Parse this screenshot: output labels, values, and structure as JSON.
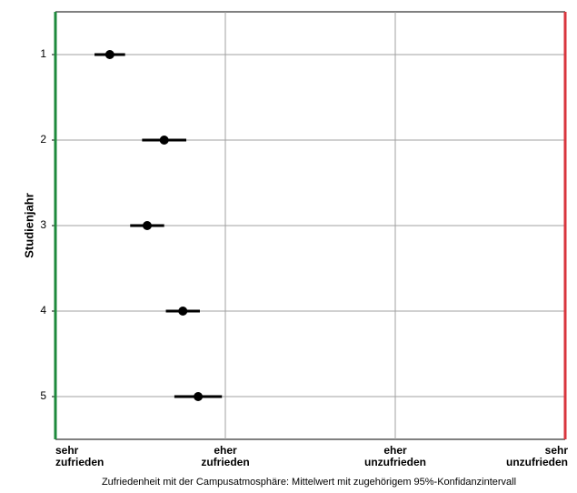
{
  "chart_data": {
    "type": "dot_errorbar",
    "x_label": "Zufriedenheit mit der Campusatmosphäre: Mittelwert mit zugehörigem 95%-Konfidanzintervall",
    "y_label": "Studienjahr",
    "categories": [
      "1",
      "2",
      "3",
      "4",
      "5"
    ],
    "values": [
      1.32,
      1.64,
      1.54,
      1.75,
      1.84
    ],
    "errors": [
      0.09,
      0.13,
      0.1,
      0.1,
      0.14
    ],
    "color": "#000000",
    "xlim": [
      1,
      4
    ],
    "xticks": [
      {
        "value": 1,
        "label": "sehr zufrieden"
      },
      {
        "value": 2,
        "label": "eher zufrieden"
      },
      {
        "value": 3,
        "label": "eher unzufrieden"
      },
      {
        "value": 4,
        "label": "sehr unzufrieden"
      }
    ],
    "xtick_colors": [
      "#1e8a3c",
      "#8fbf1f",
      "#e8c51c",
      "#d9363e"
    ],
    "grid": true
  }
}
